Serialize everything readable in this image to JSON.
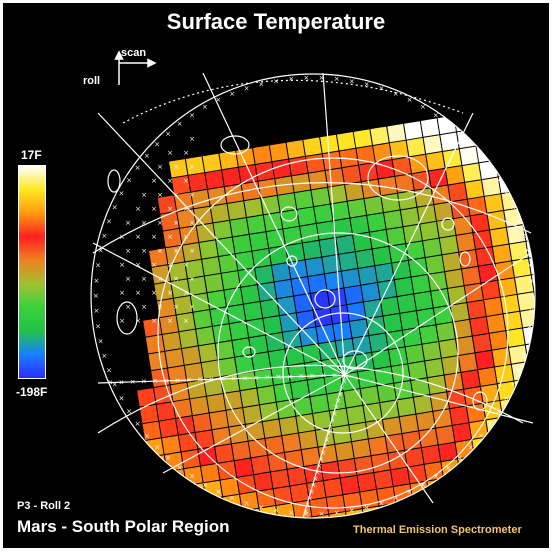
{
  "title": "Surface Temperature",
  "direction_labels": {
    "scan": "scan",
    "roll": "roll"
  },
  "color_scale": {
    "max_label": "17F",
    "min_label": "-198F",
    "stops": [
      "#2b2bff",
      "#1a7fff",
      "#22c24a",
      "#3cd13c",
      "#a0c030",
      "#f08020",
      "#ff2020",
      "#ff9a10",
      "#ffe820",
      "#ffffff"
    ]
  },
  "footer": {
    "pass": "P3 - Roll 2",
    "region": "Mars - South Polar Region",
    "instrument": "Thermal Emission Spectrometer"
  },
  "colors": {
    "background": "#000000",
    "grid": "#ffffff",
    "instrument_text": "#f2c46a"
  }
}
